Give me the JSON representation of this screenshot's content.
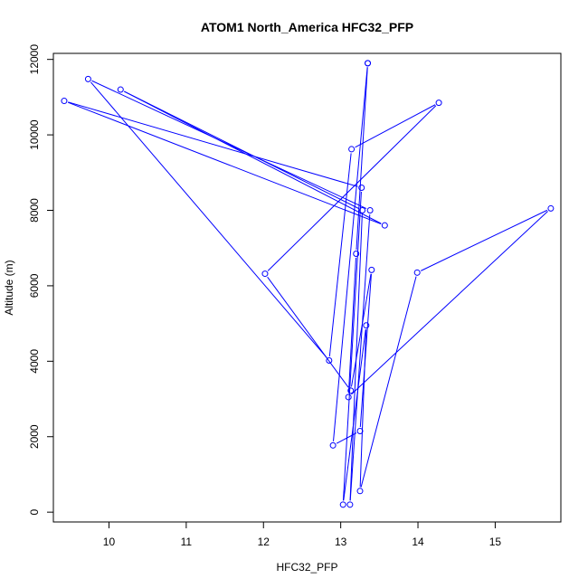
{
  "chart_data": {
    "type": "line",
    "title": "ATOM1 North_America HFC32_PFP",
    "xlabel": "HFC32_PFP",
    "ylabel": "Altitude (m)",
    "xlim": [
      9.28,
      15.85
    ],
    "ylim": [
      -260,
      12160
    ],
    "xticks": [
      10,
      11,
      12,
      13,
      14,
      15
    ],
    "yticks": [
      0,
      2000,
      4000,
      6000,
      8000,
      10000,
      12000
    ],
    "grid": false,
    "markers": "open-circle",
    "series": [
      {
        "color": "#0000ff",
        "points": [
          {
            "x": 13.35,
            "y": 11900
          },
          {
            "x": 13.2,
            "y": 6850
          },
          {
            "x": 13.1,
            "y": 3050
          },
          {
            "x": 15.72,
            "y": 8050
          },
          {
            "x": 13.99,
            "y": 6350
          },
          {
            "x": 13.25,
            "y": 560
          },
          {
            "x": 13.33,
            "y": 4950
          },
          {
            "x": 13.03,
            "y": 200
          },
          {
            "x": 13.27,
            "y": 8600
          },
          {
            "x": 9.42,
            "y": 10900
          },
          {
            "x": 13.57,
            "y": 7600
          },
          {
            "x": 10.15,
            "y": 11200
          },
          {
            "x": 13.28,
            "y": 8000
          },
          {
            "x": 13.12,
            "y": 200
          },
          {
            "x": 13.38,
            "y": 8000
          },
          {
            "x": 9.73,
            "y": 11480
          },
          {
            "x": 12.85,
            "y": 4020
          },
          {
            "x": 13.14,
            "y": 9620
          },
          {
            "x": 14.27,
            "y": 10850
          },
          {
            "x": 12.02,
            "y": 6320
          },
          {
            "x": 13.13,
            "y": 3220
          },
          {
            "x": 13.4,
            "y": 6420
          },
          {
            "x": 13.25,
            "y": 2150
          },
          {
            "x": 12.9,
            "y": 1770
          },
          {
            "x": 13.35,
            "y": 11900
          }
        ]
      }
    ]
  }
}
